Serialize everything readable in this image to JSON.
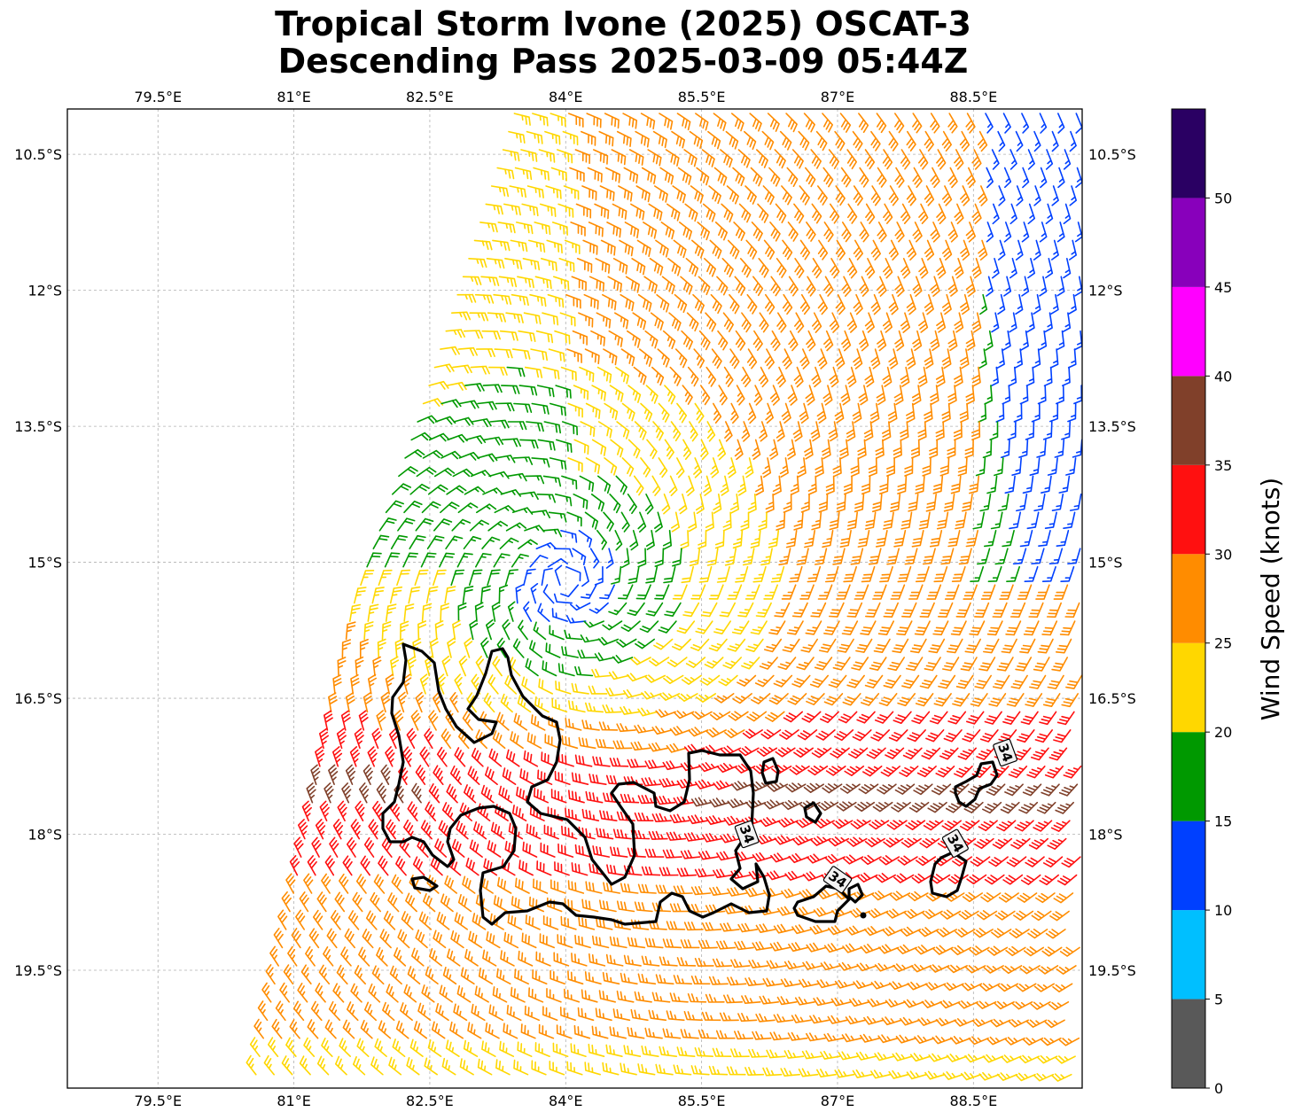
{
  "title": {
    "line1": "Tropical Storm Ivone (2025) OSCAT-3",
    "line2": "Descending Pass 2025-03-09 05:44Z"
  },
  "map": {
    "lon_range": [
      78.5,
      89.7
    ],
    "lat_range": [
      -20.8,
      -10.0
    ],
    "gridlines": true
  },
  "x_ticks": [
    {
      "value": 79.5,
      "label": "79.5°E"
    },
    {
      "value": 81.0,
      "label": "81°E"
    },
    {
      "value": 82.5,
      "label": "82.5°E"
    },
    {
      "value": 84.0,
      "label": "84°E"
    },
    {
      "value": 85.5,
      "label": "85.5°E"
    },
    {
      "value": 87.0,
      "label": "87°E"
    },
    {
      "value": 88.5,
      "label": "88.5°E"
    }
  ],
  "y_ticks": [
    {
      "value": -10.5,
      "label": "10.5°S"
    },
    {
      "value": -12.0,
      "label": "12°S"
    },
    {
      "value": -13.5,
      "label": "13.5°S"
    },
    {
      "value": -15.0,
      "label": "15°S"
    },
    {
      "value": -16.5,
      "label": "16.5°S"
    },
    {
      "value": -18.0,
      "label": "18°S"
    },
    {
      "value": -19.5,
      "label": "19.5°S"
    }
  ],
  "storm": {
    "center_lon": 84.0,
    "center_lat": -15.2,
    "swath_west_edge": [
      [
        83.4,
        -10.0
      ],
      [
        82.3,
        -13.5
      ],
      [
        81.6,
        -15.5
      ],
      [
        80.5,
        -20.8
      ]
    ]
  },
  "wind_field_description_units": "knots",
  "contours": [
    {
      "level": 34,
      "label": "34"
    }
  ],
  "contour_labels": [
    {
      "text": "34",
      "lon": 88.85,
      "lat": -17.1,
      "angle": 70
    },
    {
      "text": "34",
      "lon": 86.0,
      "lat": -18.0,
      "angle": 70
    },
    {
      "text": "34",
      "lon": 87.0,
      "lat": -18.5,
      "angle": 35
    },
    {
      "text": "34",
      "lon": 88.3,
      "lat": -18.1,
      "angle": 60
    }
  ],
  "colorbar": {
    "label": "Wind Speed (knots)",
    "bounds": [
      0,
      5,
      10,
      15,
      20,
      25,
      30,
      35,
      40,
      45,
      50,
      55
    ],
    "tick_values": [
      0,
      5,
      10,
      15,
      20,
      25,
      30,
      35,
      40,
      45,
      50
    ],
    "colors": [
      "#595959",
      "#00bfff",
      "#0040ff",
      "#009900",
      "#ffd700",
      "#ff8c00",
      "#ff1010",
      "#80402a",
      "#ff00ff",
      "#8800bb",
      "#2a0063"
    ]
  }
}
